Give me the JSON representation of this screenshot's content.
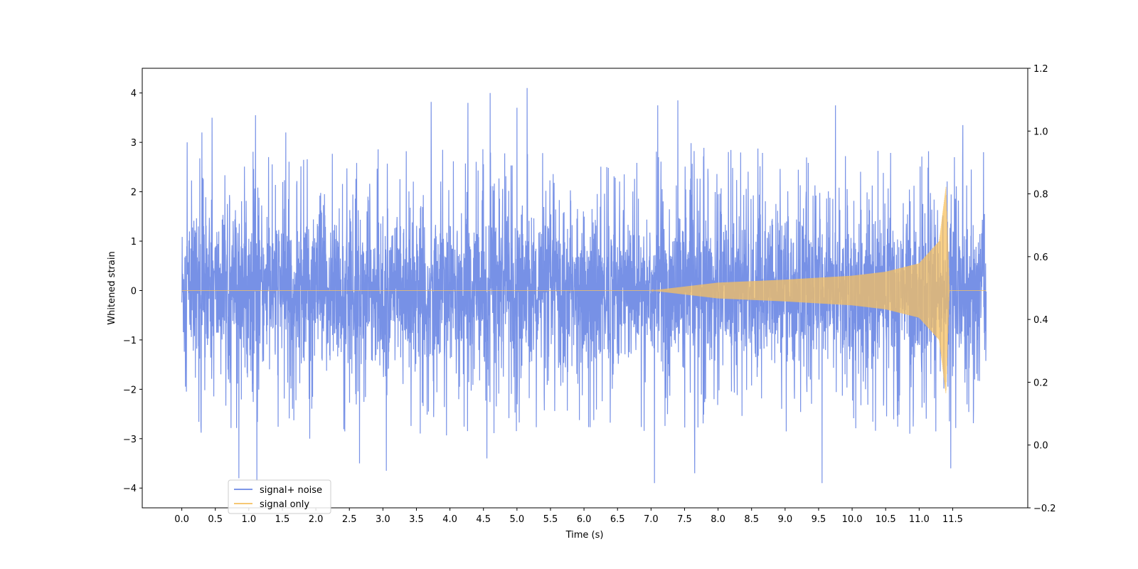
{
  "chart_data": {
    "type": "line",
    "xlabel": "Time (s)",
    "ylabel": "Whitened strain",
    "xlim": [
      -0.59,
      12.62
    ],
    "ylim": [
      -4.4,
      4.5
    ],
    "y2lim": [
      -0.2,
      1.2
    ],
    "x_ticks": [
      "0.0",
      "0.5",
      "1.0",
      "1.5",
      "2.0",
      "2.5",
      "3.0",
      "3.5",
      "4.0",
      "4.5",
      "5.0",
      "5.5",
      "6.0",
      "6.5",
      "7.0",
      "7.5",
      "8.0",
      "8.5",
      "9.0",
      "9.5",
      "10.0",
      "10.5",
      "11.0",
      "11.5"
    ],
    "y_ticks": [
      "−4",
      "−3",
      "−2",
      "−1",
      "0",
      "1",
      "2",
      "3",
      "4"
    ],
    "y2_ticks": [
      "−0.2",
      "0.0",
      "0.2",
      "0.4",
      "0.6",
      "0.8",
      "1.0",
      "1.2"
    ],
    "grid": false,
    "legend_position": "lower-left",
    "series": [
      {
        "name": "signal+ noise",
        "color": "#6b88e4",
        "x_range": [
          0.0,
          12.0
        ],
        "amplitude_envelope": 2.0,
        "peaks": [
          {
            "x": 0.08,
            "y": 3.0
          },
          {
            "x": 0.3,
            "y": 3.2
          },
          {
            "x": 0.45,
            "y": 3.5
          },
          {
            "x": 0.85,
            "y": -3.8
          },
          {
            "x": 1.1,
            "y": 3.55
          },
          {
            "x": 1.12,
            "y": -3.85
          },
          {
            "x": 1.55,
            "y": 3.2
          },
          {
            "x": 2.65,
            "y": -3.5
          },
          {
            "x": 3.05,
            "y": -3.65
          },
          {
            "x": 3.72,
            "y": 3.82
          },
          {
            "x": 4.27,
            "y": 3.8
          },
          {
            "x": 4.55,
            "y": -3.4
          },
          {
            "x": 4.6,
            "y": 4.0
          },
          {
            "x": 5.15,
            "y": 4.1
          },
          {
            "x": 5.0,
            "y": 3.7
          },
          {
            "x": 7.05,
            "y": -3.9
          },
          {
            "x": 7.1,
            "y": 3.75
          },
          {
            "x": 7.4,
            "y": 3.85
          },
          {
            "x": 7.65,
            "y": -3.7
          },
          {
            "x": 9.55,
            "y": -3.9
          },
          {
            "x": 9.75,
            "y": 3.75
          },
          {
            "x": 11.47,
            "y": -3.6
          },
          {
            "x": 11.65,
            "y": 3.35
          },
          {
            "x": 11.96,
            "y": 2.8
          }
        ]
      },
      {
        "name": "signal only",
        "color": "#f5c060",
        "x_range": [
          0.0,
          12.0
        ],
        "chirp_start": 7.0,
        "merger_time": 11.4,
        "peak_amplitude": 2.1,
        "amplitude_at": [
          {
            "x": 7.0,
            "y": 0.0
          },
          {
            "x": 8.0,
            "y": 0.16
          },
          {
            "x": 9.0,
            "y": 0.22
          },
          {
            "x": 10.0,
            "y": 0.3
          },
          {
            "x": 10.5,
            "y": 0.38
          },
          {
            "x": 11.0,
            "y": 0.55
          },
          {
            "x": 11.3,
            "y": 1.0
          },
          {
            "x": 11.4,
            "y": 2.1
          },
          {
            "x": 11.45,
            "y": 0.05
          }
        ]
      }
    ]
  }
}
